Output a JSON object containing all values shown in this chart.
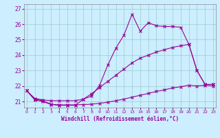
{
  "bg_color": "#cceeff",
  "line_color": "#990099",
  "grid_color": "#99cccc",
  "xlabel": "Windchill (Refroidissement éolien,°C)",
  "xlim": [
    -0.3,
    23.3
  ],
  "ylim": [
    20.6,
    27.3
  ],
  "yticks": [
    21,
    22,
    23,
    24,
    25,
    26,
    27
  ],
  "xticks": [
    0,
    1,
    2,
    3,
    4,
    5,
    6,
    7,
    8,
    9,
    10,
    11,
    12,
    13,
    14,
    15,
    16,
    17,
    18,
    19,
    20,
    21,
    22,
    23
  ],
  "line_top_x": [
    0,
    1,
    2,
    3,
    4,
    5,
    6,
    7,
    8,
    9,
    10,
    11,
    12,
    13,
    14,
    15,
    16,
    17,
    18,
    19,
    20,
    21,
    22,
    23
  ],
  "line_top_y": [
    21.7,
    21.1,
    21.0,
    20.8,
    20.75,
    20.75,
    20.75,
    21.15,
    21.35,
    22.05,
    23.35,
    24.45,
    25.3,
    26.65,
    25.55,
    26.1,
    25.9,
    25.85,
    25.85,
    25.8,
    24.7,
    23.0,
    22.1,
    22.1
  ],
  "line_mid_x": [
    0,
    1,
    2,
    3,
    4,
    5,
    6,
    7,
    8,
    9,
    10,
    11,
    12,
    13,
    14,
    15,
    16,
    17,
    18,
    19,
    20,
    21,
    22,
    23
  ],
  "line_mid_y": [
    21.7,
    21.2,
    21.1,
    21.05,
    21.05,
    21.05,
    21.05,
    21.15,
    21.5,
    21.9,
    22.3,
    22.7,
    23.1,
    23.5,
    23.8,
    24.0,
    24.2,
    24.35,
    24.5,
    24.6,
    24.7,
    23.0,
    22.1,
    22.1
  ],
  "line_bot_x": [
    0,
    1,
    2,
    3,
    4,
    5,
    6,
    7,
    8,
    9,
    10,
    11,
    12,
    13,
    14,
    15,
    16,
    17,
    18,
    19,
    20,
    21,
    22,
    23
  ],
  "line_bot_y": [
    21.7,
    21.15,
    21.05,
    20.82,
    20.78,
    20.78,
    20.78,
    20.8,
    20.82,
    20.88,
    20.95,
    21.05,
    21.15,
    21.28,
    21.4,
    21.52,
    21.65,
    21.75,
    21.88,
    21.95,
    22.05,
    22.0,
    22.05,
    22.0
  ]
}
